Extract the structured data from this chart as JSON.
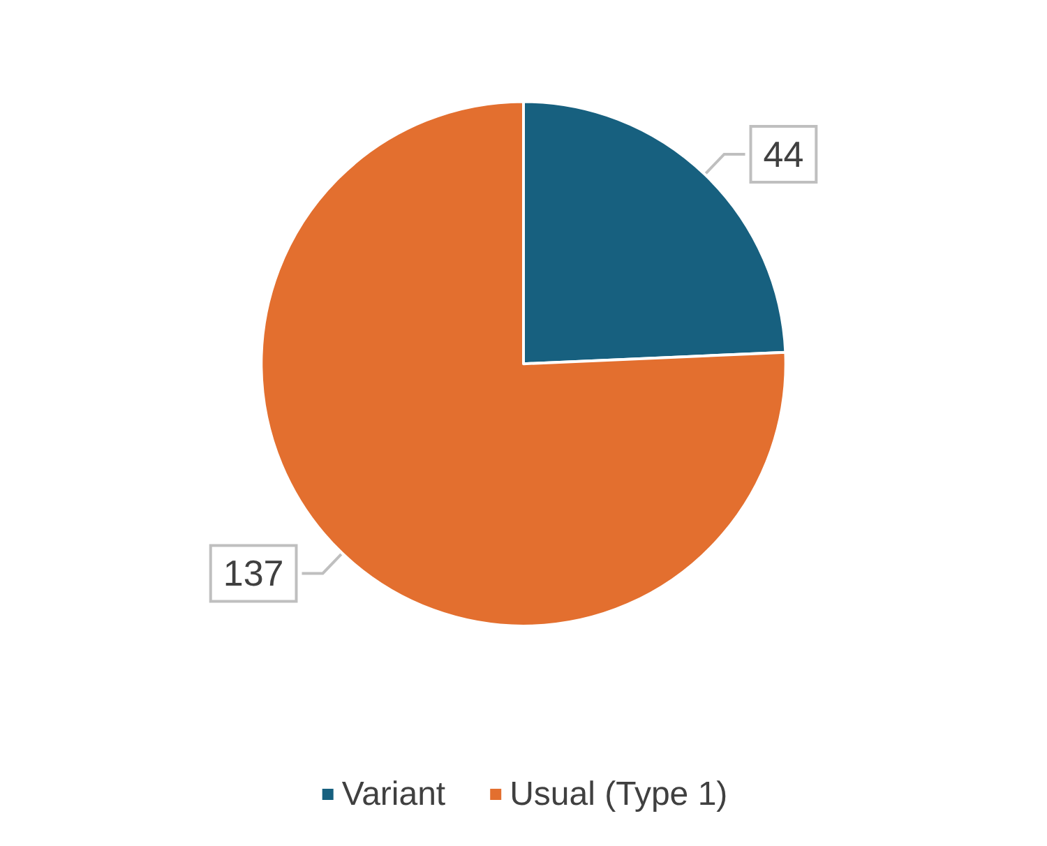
{
  "chart_data": {
    "type": "pie",
    "categories": [
      "Variant",
      "Usual (Type 1)"
    ],
    "values": [
      44,
      137
    ],
    "colors": [
      "#17607f",
      "#e36f2f"
    ],
    "data_labels": true,
    "legend": "bottom"
  }
}
